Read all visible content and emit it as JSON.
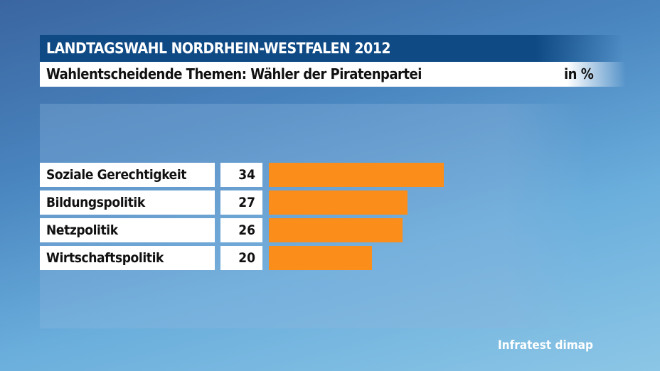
{
  "chart_data": {
    "type": "bar",
    "title": "LANDTAGSWAHL NORDRHEIN-WESTFALEN 2012",
    "subtitle": "Wahlentscheidende Themen: Wähler der Piratenpartei",
    "unit": "in %",
    "categories": [
      "Soziale Gerechtigkeit",
      "Bildungspolitik",
      "Netzpolitik",
      "Wirtschaftspolitik"
    ],
    "values": [
      34,
      27,
      26,
      20
    ],
    "bar_color": "#fb8d1a",
    "source": "Infratest dimap"
  }
}
